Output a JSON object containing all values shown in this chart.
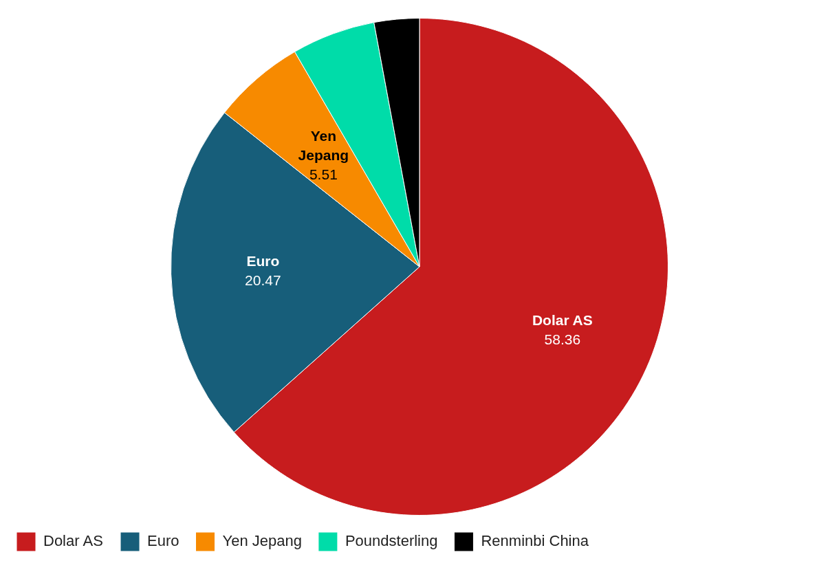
{
  "chart_data": {
    "type": "pie",
    "categories": [
      "Dolar AS",
      "Euro",
      "Yen Jepang",
      "Poundsterling",
      "Renminbi China"
    ],
    "values": [
      58.36,
      20.47,
      5.51,
      5.0,
      2.7
    ],
    "value_labels": [
      "58.36",
      "20.47",
      "5.51",
      null,
      null
    ],
    "colors": [
      "#c71c1e",
      "#175e7a",
      "#f78a00",
      "#00dca9",
      "#000000"
    ],
    "legend": "bottom"
  }
}
